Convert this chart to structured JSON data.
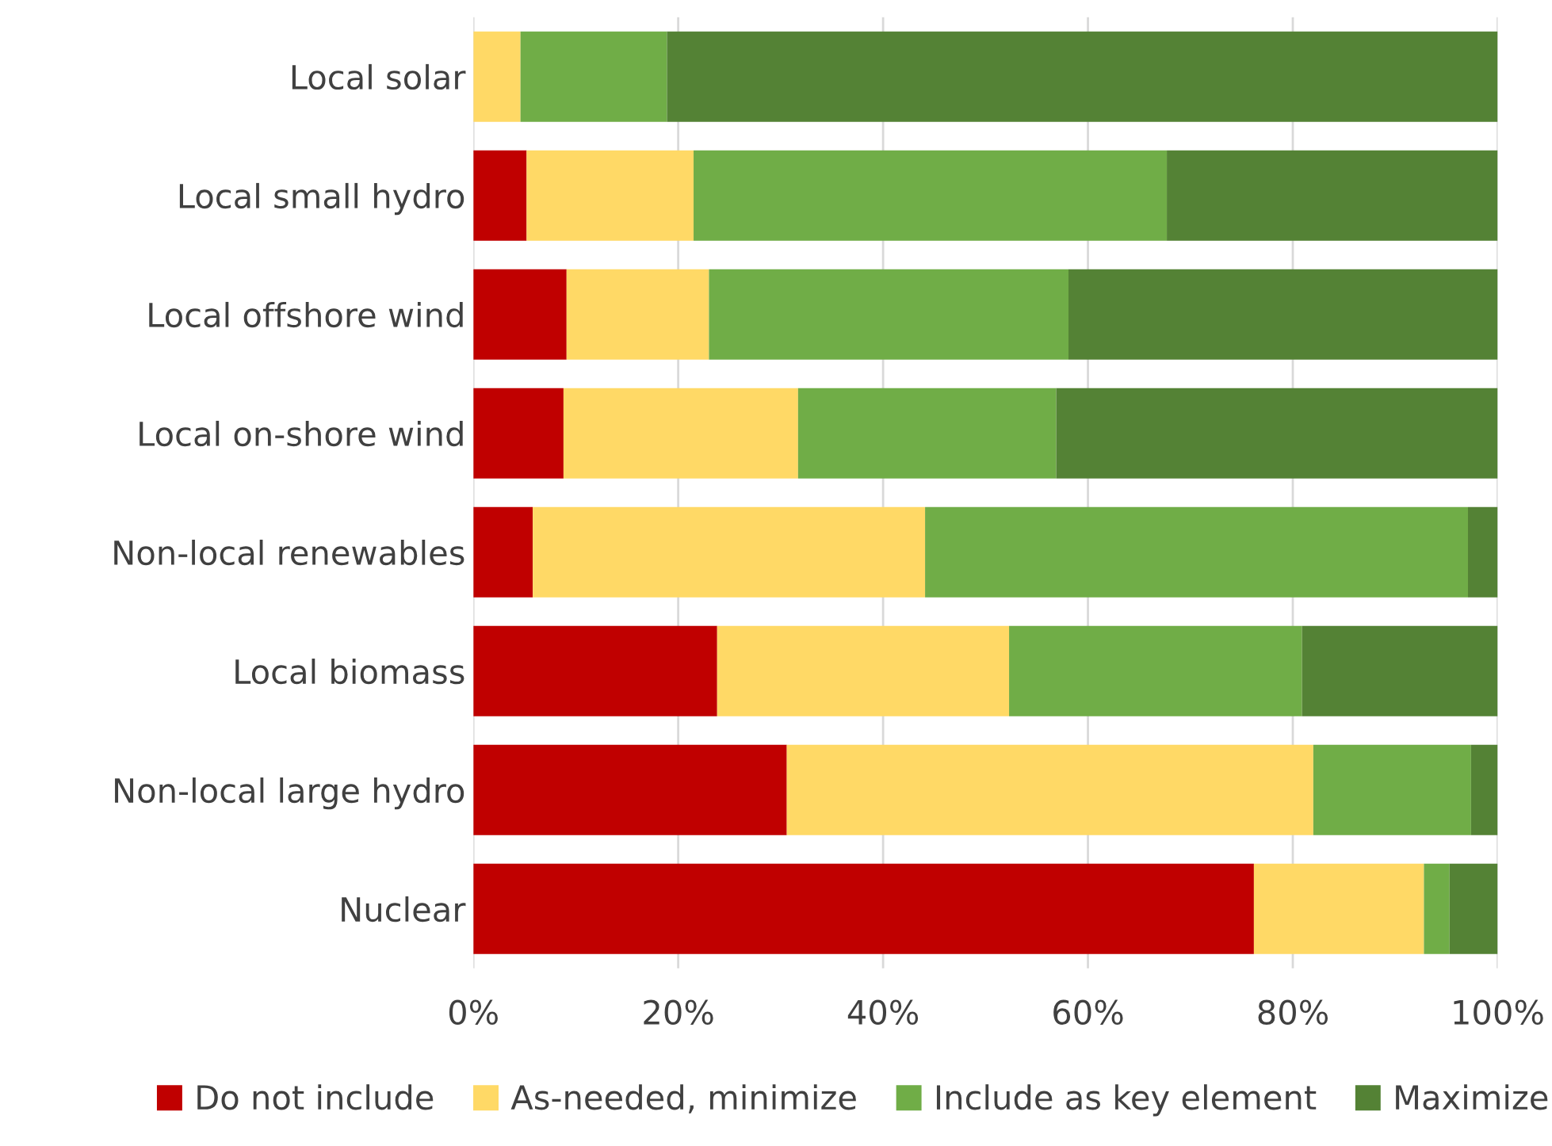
{
  "chart_data": {
    "type": "bar",
    "orientation": "horizontal",
    "stacked": true,
    "categories": [
      "Local solar",
      "Local small hydro",
      "Local offshore wind",
      "Local on-shore wind",
      "Non-local renewables",
      "Local biomass",
      "Non-local large hydro",
      "Nuclear"
    ],
    "series": [
      {
        "name": "Do not include",
        "color": "#c00000",
        "values": [
          0,
          5.2,
          9.1,
          8.8,
          5.8,
          23.8,
          30.6,
          76.2
        ]
      },
      {
        "name": "As-needed, minimize",
        "color": "#ffd966",
        "values": [
          4.6,
          16.3,
          13.9,
          22.9,
          38.3,
          28.5,
          51.4,
          16.6
        ]
      },
      {
        "name": "Include as key element",
        "color": "#70ad47",
        "values": [
          14.3,
          46.2,
          35.1,
          25.2,
          53.0,
          28.6,
          15.4,
          2.5
        ]
      },
      {
        "name": "Maximize",
        "color": "#548235",
        "values": [
          81.1,
          32.3,
          41.9,
          43.1,
          2.9,
          19.1,
          2.6,
          4.7
        ]
      }
    ],
    "xlim": [
      0,
      100
    ],
    "xticks": [
      {
        "value": 0,
        "label": "0%"
      },
      {
        "value": 20,
        "label": "20%"
      },
      {
        "value": 40,
        "label": "40%"
      },
      {
        "value": 60,
        "label": "60%"
      },
      {
        "value": 80,
        "label": "80%"
      },
      {
        "value": 100,
        "label": "100%"
      }
    ],
    "grid": "x",
    "legend": "bottom"
  }
}
